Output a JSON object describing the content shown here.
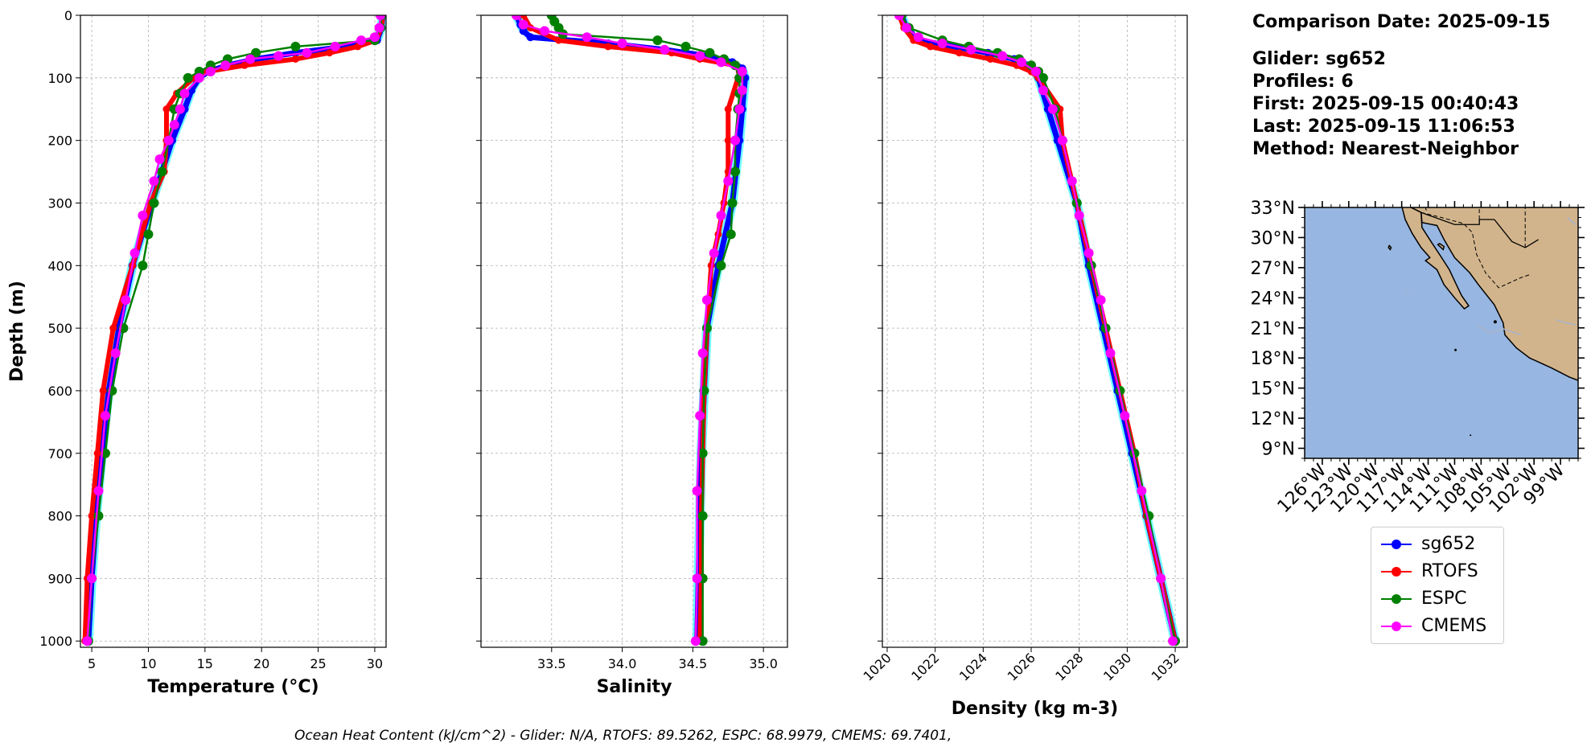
{
  "info": {
    "comparison_date": "Comparison Date: 2025-09-15",
    "glider": "Glider: sg652",
    "profiles": "Profiles: 6",
    "first": "First: 2025-09-15 00:40:43",
    "last": "Last: 2025-09-15 11:06:53",
    "method": "Method: Nearest-Neighbor"
  },
  "footer": "Ocean Heat Content (kJ/cm^2) - Glider: N/A,  RTOFS: 89.5262,  ESPC: 68.9979,  CMEMS: 69.7401,",
  "colors": {
    "sg652": "#0000ff",
    "RTOFS": "#ff0000",
    "ESPC": "#008000",
    "CMEMS": "#ff00ff",
    "glider_shade": "#00ffff",
    "ocean": "#97b6e1",
    "land": "#d2b48c"
  },
  "legend": [
    {
      "name": "sg652",
      "color": "#0000ff"
    },
    {
      "name": "RTOFS",
      "color": "#ff0000"
    },
    {
      "name": "ESPC",
      "color": "#008000"
    },
    {
      "name": "CMEMS",
      "color": "#ff00ff"
    }
  ],
  "chart_data": [
    {
      "type": "line",
      "xlabel": "Temperature (°C)",
      "ylabel": "Depth (m)",
      "xlim": [
        4,
        31
      ],
      "ylim": [
        1010,
        0
      ],
      "xticks": [
        5,
        10,
        15,
        20,
        25,
        30
      ],
      "yticks": [
        0,
        100,
        200,
        300,
        400,
        500,
        600,
        700,
        800,
        900,
        1000
      ],
      "grid": true,
      "series": [
        {
          "name": "sg652",
          "depth": [
            0,
            20,
            40,
            50,
            60,
            70,
            80,
            90,
            100,
            120,
            150,
            200,
            250,
            300,
            400,
            500,
            600,
            700,
            800,
            900,
            1000
          ],
          "values": [
            30.7,
            30.6,
            30.2,
            27.5,
            23.0,
            19.5,
            17.0,
            15.3,
            14.5,
            13.8,
            13.2,
            12.1,
            11.2,
            10.3,
            8.6,
            7.4,
            6.5,
            5.9,
            5.4,
            5.0,
            4.7
          ]
        },
        {
          "name": "RTOFS",
          "depth": [
            0,
            20,
            40,
            50,
            60,
            70,
            80,
            90,
            100,
            125,
            150,
            200,
            250,
            300,
            400,
            500,
            600,
            700,
            800,
            900,
            1000
          ],
          "values": [
            30.7,
            30.6,
            30.1,
            28.5,
            26.0,
            23.0,
            18.5,
            15.2,
            14.0,
            12.5,
            11.6,
            11.6,
            11.4,
            10.2,
            8.6,
            6.9,
            6.0,
            5.5,
            5.0,
            4.6,
            4.4
          ]
        },
        {
          "name": "ESPC",
          "depth": [
            0,
            20,
            40,
            50,
            60,
            70,
            80,
            90,
            100,
            125,
            150,
            200,
            250,
            300,
            350,
            400,
            500,
            600,
            700,
            800,
            900,
            1000
          ],
          "values": [
            30.6,
            30.5,
            30.0,
            23.0,
            19.5,
            17.0,
            15.5,
            14.5,
            13.5,
            12.8,
            12.3,
            11.8,
            11.2,
            10.5,
            10.0,
            9.5,
            7.8,
            6.8,
            6.2,
            5.6,
            5.0,
            4.7
          ]
        },
        {
          "name": "CMEMS",
          "depth": [
            0,
            20,
            35,
            40,
            50,
            60,
            65,
            70,
            80,
            90,
            100,
            125,
            150,
            175,
            200,
            230,
            265,
            320,
            380,
            455,
            540,
            640,
            760,
            900,
            1000
          ],
          "values": [
            30.5,
            30.4,
            30.0,
            28.8,
            26.5,
            24.0,
            21.5,
            19.0,
            16.8,
            15.5,
            14.5,
            13.2,
            12.8,
            12.3,
            11.8,
            11.0,
            10.5,
            9.5,
            8.8,
            8.0,
            7.1,
            6.2,
            5.6,
            5.0,
            4.6
          ]
        }
      ]
    },
    {
      "type": "line",
      "xlabel": "Salinity",
      "ylabel": "",
      "xlim": [
        33.0,
        35.17
      ],
      "ylim": [
        1010,
        0
      ],
      "xticks": [
        33.5,
        34.0,
        34.5,
        35.0
      ],
      "xticklabels": [
        "33.5",
        "34.0",
        "34.5",
        "35.0"
      ],
      "grid": true,
      "series": [
        {
          "name": "sg652",
          "depth": [
            0,
            15,
            25,
            35,
            45,
            55,
            65,
            75,
            85,
            100,
            150,
            200,
            300,
            400,
            500,
            600,
            700,
            800,
            900,
            1000
          ],
          "values": [
            33.25,
            33.28,
            33.3,
            33.35,
            33.9,
            34.3,
            34.6,
            34.78,
            34.85,
            34.87,
            34.85,
            34.83,
            34.78,
            34.68,
            34.6,
            34.58,
            34.56,
            34.55,
            34.54,
            34.53
          ]
        },
        {
          "name": "RTOFS",
          "depth": [
            0,
            20,
            40,
            50,
            60,
            70,
            80,
            90,
            100,
            150,
            200,
            250,
            300,
            350,
            400,
            500,
            600,
            700,
            800,
            900,
            1000
          ],
          "values": [
            33.3,
            33.35,
            33.55,
            33.9,
            34.35,
            34.55,
            34.8,
            34.83,
            34.82,
            34.75,
            34.75,
            34.75,
            34.72,
            34.68,
            34.63,
            34.6,
            34.58,
            34.57,
            34.56,
            34.56,
            34.55
          ]
        },
        {
          "name": "ESPC",
          "depth": [
            0,
            10,
            20,
            30,
            40,
            50,
            60,
            70,
            80,
            100,
            125,
            150,
            200,
            250,
            300,
            350,
            400,
            500,
            600,
            700,
            800,
            900,
            1000
          ],
          "values": [
            33.5,
            33.52,
            33.55,
            33.58,
            34.25,
            34.45,
            34.62,
            34.72,
            34.8,
            34.83,
            34.83,
            34.82,
            34.8,
            34.8,
            34.78,
            34.77,
            34.7,
            34.6,
            34.58,
            34.57,
            34.57,
            34.57,
            34.57
          ]
        },
        {
          "name": "CMEMS",
          "depth": [
            0,
            15,
            25,
            35,
            45,
            55,
            65,
            75,
            90,
            120,
            150,
            200,
            265,
            320,
            380,
            455,
            540,
            640,
            760,
            900,
            1000
          ],
          "values": [
            33.25,
            33.3,
            33.45,
            33.75,
            34.0,
            34.3,
            34.55,
            34.7,
            34.85,
            34.85,
            34.83,
            34.8,
            34.75,
            34.7,
            34.65,
            34.6,
            34.57,
            34.55,
            34.53,
            34.53,
            34.52
          ]
        }
      ]
    },
    {
      "type": "line",
      "xlabel": "Density (kg m-3)",
      "ylabel": "",
      "xlim": [
        1019.8,
        1032.5
      ],
      "ylim": [
        1010,
        0
      ],
      "xticks": [
        1020,
        1022,
        1024,
        1026,
        1028,
        1030,
        1032
      ],
      "grid": true,
      "series": [
        {
          "name": "sg652",
          "depth": [
            0,
            20,
            30,
            40,
            50,
            60,
            70,
            80,
            90,
            100,
            150,
            200,
            300,
            400,
            500,
            600,
            700,
            800,
            900,
            1000
          ],
          "values": [
            1020.6,
            1020.8,
            1021.0,
            1021.3,
            1022.8,
            1024.2,
            1025.3,
            1025.8,
            1026.1,
            1026.3,
            1026.7,
            1027.1,
            1027.9,
            1028.4,
            1029.0,
            1029.6,
            1030.2,
            1030.8,
            1031.4,
            1032.0
          ]
        },
        {
          "name": "RTOFS",
          "depth": [
            0,
            20,
            40,
            50,
            60,
            70,
            80,
            90,
            100,
            150,
            200,
            300,
            400,
            500,
            600,
            700,
            800,
            900,
            1000
          ],
          "values": [
            1020.5,
            1020.7,
            1021.1,
            1021.8,
            1023.0,
            1024.3,
            1025.4,
            1026.0,
            1026.3,
            1027.2,
            1027.3,
            1027.9,
            1028.5,
            1029.1,
            1029.7,
            1030.3,
            1030.8,
            1031.4,
            1032.0
          ]
        },
        {
          "name": "ESPC",
          "depth": [
            0,
            20,
            40,
            50,
            60,
            70,
            80,
            90,
            100,
            150,
            200,
            300,
            400,
            500,
            600,
            700,
            800,
            900,
            1000
          ],
          "values": [
            1020.6,
            1020.9,
            1022.3,
            1023.4,
            1024.6,
            1025.5,
            1026.0,
            1026.3,
            1026.5,
            1027.0,
            1027.3,
            1027.9,
            1028.5,
            1029.1,
            1029.7,
            1030.3,
            1030.9,
            1031.4,
            1032.0
          ]
        },
        {
          "name": "CMEMS",
          "depth": [
            0,
            20,
            35,
            45,
            55,
            65,
            75,
            90,
            120,
            150,
            200,
            265,
            320,
            380,
            455,
            540,
            640,
            760,
            900,
            1000
          ],
          "values": [
            1020.5,
            1020.8,
            1021.3,
            1022.3,
            1023.5,
            1024.8,
            1025.6,
            1026.2,
            1026.5,
            1026.9,
            1027.3,
            1027.7,
            1028.0,
            1028.4,
            1028.9,
            1029.3,
            1029.9,
            1030.6,
            1031.4,
            1031.9
          ]
        }
      ]
    },
    {
      "type": "map",
      "lon_range": [
        -128,
        -97
      ],
      "lat_range": [
        8,
        33
      ],
      "lat_ticks": [
        33,
        30,
        27,
        24,
        21,
        18,
        15,
        12,
        9
      ],
      "lat_labels": [
        "33°N",
        "30°N",
        "27°N",
        "24°N",
        "21°N",
        "18°N",
        "15°N",
        "12°N",
        "9°N"
      ],
      "lon_ticks": [
        -126,
        -123,
        -120,
        -117,
        -114,
        -111,
        -108,
        -105,
        -102,
        -99
      ],
      "lon_labels": [
        "126°W",
        "123°W",
        "120°W",
        "117°W",
        "114°W",
        "111°W",
        "108°W",
        "105°W",
        "102°W",
        "99°W"
      ]
    }
  ]
}
